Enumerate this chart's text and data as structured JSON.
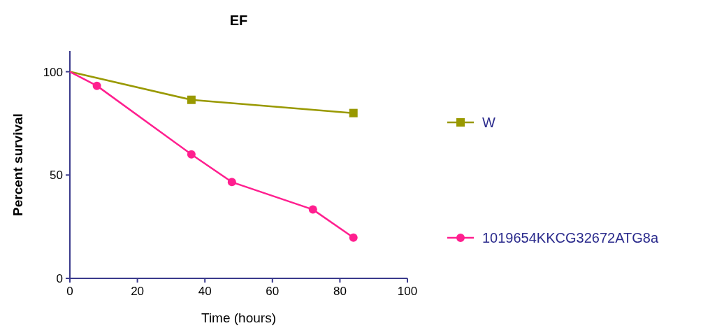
{
  "chart_data": {
    "type": "line",
    "title": "EF",
    "xlabel": "Time (hours)",
    "ylabel": "Percent survival",
    "xlim": [
      0,
      100
    ],
    "xticks": [
      0,
      20,
      40,
      60,
      80,
      100
    ],
    "ylim": [
      0,
      110
    ],
    "yticks": [
      0,
      50,
      100
    ],
    "legend": "right",
    "grid": false,
    "series": [
      {
        "name": "W",
        "color": "#999900",
        "marker": "square",
        "x": [
          0,
          36,
          84
        ],
        "values": [
          100,
          86.4,
          80
        ]
      },
      {
        "name": "1019654KKCG32672ATG8a",
        "color": "#ff1f8f",
        "marker": "circle",
        "x": [
          0,
          8,
          36,
          48,
          72,
          84
        ],
        "values": [
          100,
          93.2,
          60,
          46.6,
          33.3,
          19.7
        ]
      }
    ]
  }
}
